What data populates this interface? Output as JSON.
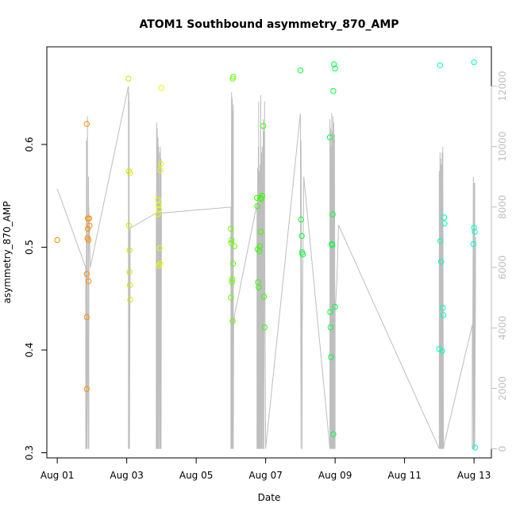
{
  "chart_data": {
    "type": "scatter",
    "title": "ATOM1 Southbound asymmetry_870_AMP",
    "xlabel": "Date",
    "ylabel": "asymmetry_870_AMP",
    "x_ticks": [
      "Aug 01",
      "Aug 03",
      "Aug 05",
      "Aug 07",
      "Aug 09",
      "Aug 11",
      "Aug 13"
    ],
    "x_tick_days": [
      1,
      3,
      5,
      7,
      9,
      11,
      13
    ],
    "xlim_days": [
      0.7,
      13.5
    ],
    "ylim": [
      0.295,
      0.695
    ],
    "y_ticks": [
      "0.3",
      "0.4",
      "0.5",
      "0.6"
    ],
    "y_tick_values": [
      0.3,
      0.4,
      0.5,
      0.6
    ],
    "y2_ticks": [
      "0",
      "2000",
      "4000",
      "6000",
      "8000",
      "10000",
      "12000"
    ],
    "y2_tick_values": [
      0,
      2000,
      4000,
      6000,
      8000,
      10000,
      12000
    ],
    "y2lim": [
      -300,
      13300
    ],
    "grid": false,
    "colors": {
      "line": "#bebebe",
      "point_gradient": [
        "#ff8c00",
        "#ffff00",
        "#00ff40",
        "#00ffcc"
      ]
    },
    "points_x_days": [
      1.0,
      1.85,
      1.85,
      1.85,
      1.85,
      1.87,
      1.88,
      1.88,
      1.9,
      1.9,
      1.92,
      1.93,
      3.05,
      3.06,
      3.06,
      3.08,
      3.08,
      3.09,
      3.1,
      3.1,
      3.9,
      3.9,
      3.92,
      3.93,
      3.93,
      3.95,
      3.97,
      3.97,
      3.99,
      4.0,
      6.0,
      6.0,
      6.01,
      6.02,
      6.03,
      6.04,
      6.05,
      6.05,
      6.06,
      6.07,
      6.1,
      6.75,
      6.76,
      6.77,
      6.78,
      6.8,
      6.82,
      6.83,
      6.85,
      6.86,
      6.88,
      6.9,
      6.93,
      6.95,
      6.97,
      8.0,
      8.02,
      8.04,
      8.05,
      8.07,
      8.85,
      8.86,
      8.87,
      8.88,
      8.9,
      8.92,
      8.93,
      8.95,
      8.95,
      8.97,
      9.0,
      9.0,
      12.0,
      12.02,
      12.03,
      12.05,
      12.08,
      12.1,
      12.12,
      12.14,
      12.15,
      12.98,
      13.0,
      13.0,
      13.02,
      13.03
    ],
    "points_y": [
      0.507,
      0.62,
      0.474,
      0.432,
      0.362,
      0.509,
      0.518,
      0.528,
      0.467,
      0.507,
      0.528,
      0.521,
      0.664,
      0.574,
      0.521,
      0.497,
      0.476,
      0.463,
      0.449,
      0.572,
      0.532,
      0.546,
      0.541,
      0.537,
      0.482,
      0.499,
      0.484,
      0.575,
      0.581,
      0.655,
      0.451,
      0.518,
      0.504,
      0.507,
      0.466,
      0.469,
      0.428,
      0.664,
      0.484,
      0.666,
      0.501,
      0.548,
      0.54,
      0.498,
      0.466,
      0.461,
      0.496,
      0.501,
      0.548,
      0.515,
      0.547,
      0.55,
      0.618,
      0.452,
      0.422,
      0.672,
      0.527,
      0.511,
      0.495,
      0.493,
      0.607,
      0.437,
      0.422,
      0.393,
      0.503,
      0.502,
      0.532,
      0.318,
      0.652,
      0.678,
      0.674,
      0.442,
      0.401,
      0.677,
      0.506,
      0.486,
      0.399,
      0.441,
      0.434,
      0.529,
      0.523,
      0.503,
      0.519,
      0.68,
      0.515,
      0.305
    ],
    "point_colors": [
      "#ff8c00",
      "#ff8c00",
      "#ff8c00",
      "#ff8c00",
      "#ff8c00",
      "#ff8c00",
      "#ff8c00",
      "#ff8c00",
      "#ff8c00",
      "#ff8c00",
      "#ff8c00",
      "#ff8c00",
      "#d4e600",
      "#d4e600",
      "#d4e600",
      "#d4e600",
      "#d4e600",
      "#d4e600",
      "#d4e600",
      "#d4e600",
      "#e6ff00",
      "#e6ff00",
      "#e6ff00",
      "#e6ff00",
      "#e6ff00",
      "#e6ff00",
      "#e6ff00",
      "#e6ff00",
      "#e6ff00",
      "#e6ff00",
      "#66ff00",
      "#66ff00",
      "#66ff00",
      "#66ff00",
      "#66ff00",
      "#66ff00",
      "#66ff00",
      "#66ff00",
      "#66ff00",
      "#66ff00",
      "#66ff00",
      "#33ff00",
      "#33ff00",
      "#33ff00",
      "#33ff00",
      "#33ff00",
      "#33ff00",
      "#33ff00",
      "#33ff00",
      "#33ff00",
      "#33ff00",
      "#33ff00",
      "#33ff00",
      "#33ff00",
      "#33ff00",
      "#00ff33",
      "#00ff33",
      "#00ff33",
      "#00ff33",
      "#00ff33",
      "#00ff44",
      "#00ff44",
      "#00ff44",
      "#00ff44",
      "#00ff44",
      "#00ff44",
      "#00ff44",
      "#00ff44",
      "#00ff44",
      "#00ff44",
      "#00ff44",
      "#00ff44",
      "#00ffb3",
      "#00ffb3",
      "#00ffb3",
      "#00ffb3",
      "#00ffb3",
      "#00ffb3",
      "#00ffb3",
      "#00ffb3",
      "#00ffb3",
      "#00ffcc",
      "#00ffcc",
      "#00ffcc",
      "#00ffcc",
      "#00ffcc"
    ],
    "line_x_days": [
      1.0,
      1.82,
      1.82,
      1.83,
      1.83,
      1.84,
      1.84,
      1.85,
      1.85,
      1.86,
      1.86,
      1.87,
      1.87,
      1.9,
      1.9,
      1.91,
      1.91,
      1.95,
      1.95,
      3.05,
      3.05,
      3.06,
      3.06,
      3.07,
      3.07,
      3.08,
      3.08,
      3.1,
      3.85,
      3.85,
      3.86,
      3.86,
      3.87,
      3.87,
      3.88,
      3.88,
      3.89,
      3.89,
      3.9,
      3.9,
      3.92,
      3.92,
      3.95,
      3.95,
      3.97,
      3.97,
      3.99,
      3.99,
      4.0,
      6.0,
      6.0,
      6.02,
      6.02,
      6.04,
      6.04,
      6.06,
      6.06,
      6.07,
      6.07,
      6.08,
      6.1,
      6.75,
      6.75,
      6.77,
      6.77,
      6.79,
      6.79,
      6.8,
      6.8,
      6.82,
      6.82,
      6.84,
      6.84,
      6.86,
      6.86,
      6.88,
      6.88,
      6.9,
      6.9,
      6.93,
      6.93,
      6.95,
      6.95,
      6.97,
      6.97,
      7.0,
      8.0,
      8.02,
      8.02,
      8.05,
      8.05,
      8.1,
      8.85,
      8.85,
      8.87,
      8.87,
      8.88,
      8.88,
      8.9,
      8.9,
      8.92,
      8.92,
      8.94,
      8.94,
      8.96,
      8.96,
      8.98,
      8.98,
      9.0,
      9.0,
      9.05,
      9.1,
      12.0,
      12.0,
      12.02,
      12.02,
      12.04,
      12.04,
      12.06,
      12.06,
      12.08,
      12.08,
      12.1,
      12.1,
      12.12,
      12.15,
      12.95,
      12.95,
      12.98,
      12.98,
      13.0,
      13.0,
      13.02,
      13.02,
      13.05
    ],
    "line_y2": [
      8600,
      6000,
      0,
      4200,
      0,
      10200,
      0,
      9800,
      0,
      10300,
      0,
      11000,
      5000,
      0,
      9000,
      0,
      8000,
      6000,
      6000,
      12000,
      0,
      11800,
      0,
      11500,
      0,
      7200,
      0,
      7300,
      7800,
      0,
      10800,
      0,
      10200,
      0,
      10600,
      0,
      10000,
      0,
      10300,
      0,
      10000,
      0,
      9800,
      0,
      10000,
      0,
      9600,
      0,
      7800,
      8000,
      0,
      11800,
      0,
      11600,
      0,
      11200,
      0,
      11400,
      0,
      4100,
      4400,
      8100,
      0,
      9300,
      0,
      10000,
      0,
      11500,
      0,
      9200,
      0,
      9400,
      0,
      11700,
      0,
      9800,
      0,
      10000,
      0,
      10900,
      0,
      10500,
      0,
      11500,
      8000,
      0,
      11100,
      0,
      10200,
      0,
      3800,
      9000,
      0,
      10900,
      0,
      10600,
      0,
      10000,
      0,
      11100,
      0,
      10500,
      0,
      11000,
      0,
      10800,
      0,
      10400,
      0,
      4500,
      5500,
      7400,
      0,
      9200,
      0,
      9800,
      0,
      9600,
      0,
      9400,
      0,
      9800,
      0,
      10000,
      0,
      200,
      4100,
      0,
      9000,
      0,
      8800,
      0,
      8800,
      0,
      7000
    ]
  }
}
